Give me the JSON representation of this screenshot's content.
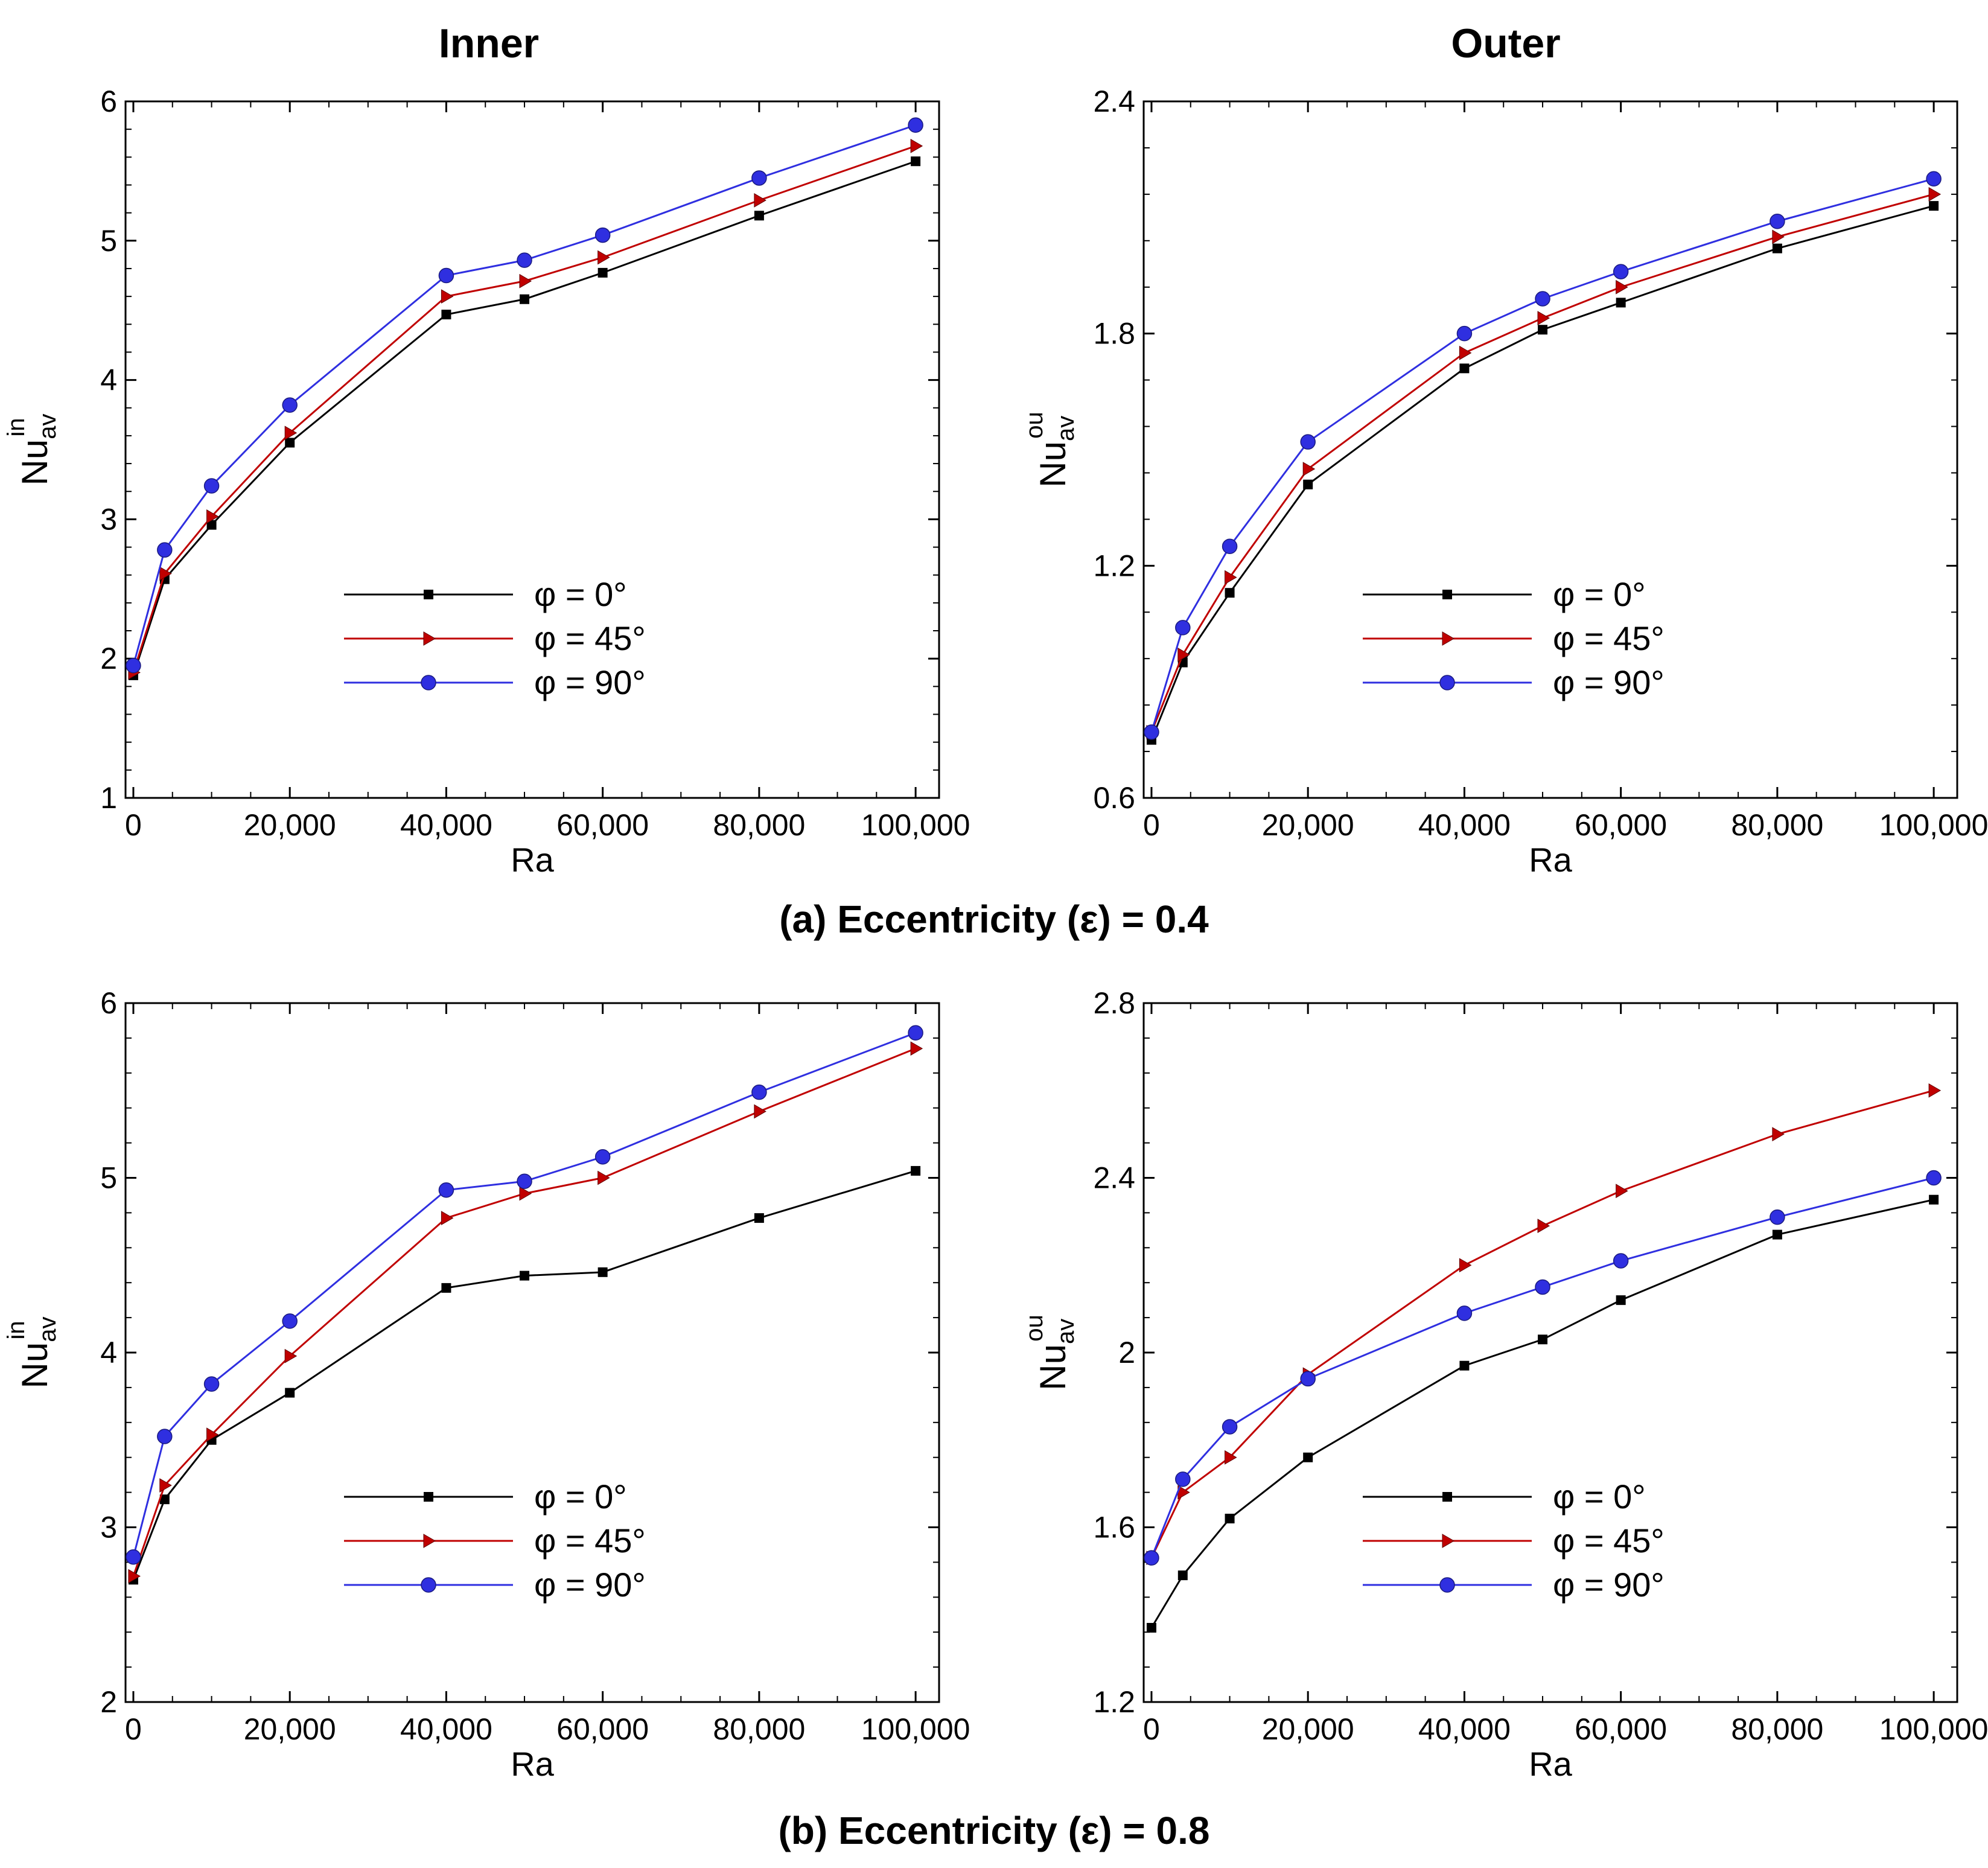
{
  "column_titles": [
    "Inner",
    "Outer"
  ],
  "captions": [
    "(a) Eccentricity (ε) = 0.4",
    "(b) Eccentricity (ε) = 0.8"
  ],
  "legend_labels": [
    "φ = 0°",
    "φ = 45°",
    "φ = 90°"
  ],
  "series_colors": [
    "#000000",
    "#c00000",
    "#2f2fe0"
  ],
  "marker_shapes": [
    "square",
    "triangle-right",
    "circle"
  ],
  "chart_data": [
    {
      "type": "line",
      "title": "Inner",
      "caption": "(a) Eccentricity (ε) = 0.4",
      "xlabel": "Ra",
      "ylabel": {
        "main": "Nu",
        "sub": "av",
        "sup": "in"
      },
      "xlim": [
        -1000,
        103000
      ],
      "ylim": [
        1,
        6
      ],
      "xticks": [
        0,
        20000,
        40000,
        60000,
        80000,
        100000
      ],
      "xtick_labels": [
        "0",
        "20,000",
        "40,000",
        "60,000",
        "80,000",
        "100,000"
      ],
      "yticks": [
        1,
        2,
        3,
        4,
        5,
        6
      ],
      "ytick_labels": [
        "1",
        "2",
        "3",
        "4",
        "5",
        "6"
      ],
      "x": [
        0,
        4000,
        10000,
        20000,
        40000,
        50000,
        60000,
        80000,
        100000
      ],
      "series": [
        {
          "name": "φ = 0°",
          "values": [
            1.88,
            2.57,
            2.96,
            3.55,
            4.47,
            4.58,
            4.77,
            5.18,
            5.57
          ]
        },
        {
          "name": "φ = 45°",
          "values": [
            1.9,
            2.61,
            3.02,
            3.62,
            4.6,
            4.71,
            4.88,
            5.29,
            5.68
          ]
        },
        {
          "name": "φ = 90°",
          "values": [
            1.95,
            2.78,
            3.24,
            3.82,
            4.75,
            4.86,
            5.04,
            5.45,
            5.83
          ]
        }
      ],
      "legend_position": "center"
    },
    {
      "type": "line",
      "title": "Outer",
      "caption": "(a) Eccentricity (ε) = 0.4",
      "xlabel": "Ra",
      "ylabel": {
        "main": "Nu",
        "sub": "av",
        "sup": "ou"
      },
      "xlim": [
        -1000,
        103000
      ],
      "ylim": [
        0.6,
        2.4
      ],
      "xticks": [
        0,
        20000,
        40000,
        60000,
        80000,
        100000
      ],
      "xtick_labels": [
        "0",
        "20,000",
        "40,000",
        "60,000",
        "80,000",
        "100,000"
      ],
      "yticks": [
        0.6,
        1.2,
        1.8,
        2.4
      ],
      "ytick_labels": [
        "0.6",
        "1.2",
        "1.8",
        "2.4"
      ],
      "x": [
        0,
        4000,
        10000,
        20000,
        40000,
        50000,
        60000,
        80000,
        100000
      ],
      "series": [
        {
          "name": "φ = 0°",
          "values": [
            0.75,
            0.95,
            1.13,
            1.41,
            1.71,
            1.81,
            1.88,
            2.02,
            2.13
          ]
        },
        {
          "name": "φ = 45°",
          "values": [
            0.77,
            0.97,
            1.17,
            1.45,
            1.75,
            1.84,
            1.92,
            2.05,
            2.16
          ]
        },
        {
          "name": "φ = 90°",
          "values": [
            0.77,
            1.04,
            1.25,
            1.52,
            1.8,
            1.89,
            1.96,
            2.09,
            2.2
          ]
        }
      ],
      "legend_position": "center"
    },
    {
      "type": "line",
      "title": "Inner",
      "caption": "(b) Eccentricity (ε) = 0.8",
      "xlabel": "Ra",
      "ylabel": {
        "main": "Nu",
        "sub": "av",
        "sup": "in"
      },
      "xlim": [
        -1000,
        103000
      ],
      "ylim": [
        2,
        6
      ],
      "xticks": [
        0,
        20000,
        40000,
        60000,
        80000,
        100000
      ],
      "xtick_labels": [
        "0",
        "20,000",
        "40,000",
        "60,000",
        "80,000",
        "100,000"
      ],
      "yticks": [
        2,
        3,
        4,
        5,
        6
      ],
      "ytick_labels": [
        "2",
        "3",
        "4",
        "5",
        "6"
      ],
      "x": [
        0,
        4000,
        10000,
        20000,
        40000,
        50000,
        60000,
        80000,
        100000
      ],
      "series": [
        {
          "name": "φ = 0°",
          "values": [
            2.7,
            3.16,
            3.5,
            3.77,
            4.37,
            4.44,
            4.46,
            4.77,
            5.04
          ]
        },
        {
          "name": "φ = 45°",
          "values": [
            2.72,
            3.24,
            3.53,
            3.98,
            4.77,
            4.91,
            5.0,
            5.38,
            5.74
          ]
        },
        {
          "name": "φ = 90°",
          "values": [
            2.83,
            3.52,
            3.82,
            4.18,
            4.93,
            4.98,
            5.12,
            5.49,
            5.83
          ]
        }
      ],
      "legend_position": "lower-center"
    },
    {
      "type": "line",
      "title": "Outer",
      "caption": "(b) Eccentricity (ε) = 0.8",
      "xlabel": "Ra",
      "ylabel": {
        "main": "Nu",
        "sub": "av",
        "sup": "ou"
      },
      "xlim": [
        -1000,
        103000
      ],
      "ylim": [
        1.2,
        2.8
      ],
      "xticks": [
        0,
        20000,
        40000,
        60000,
        80000,
        100000
      ],
      "xtick_labels": [
        "0",
        "20,000",
        "40,000",
        "60,000",
        "80,000",
        "100,000"
      ],
      "yticks": [
        1.2,
        1.6,
        2,
        2.4,
        2.8
      ],
      "ytick_labels": [
        "1.2",
        "1.6",
        "2",
        "2.4",
        "2.8"
      ],
      "x": [
        0,
        4000,
        10000,
        20000,
        40000,
        50000,
        60000,
        80000,
        100000
      ],
      "series": [
        {
          "name": "φ = 0°",
          "values": [
            1.37,
            1.49,
            1.62,
            1.76,
            1.97,
            2.03,
            2.12,
            2.27,
            2.35
          ]
        },
        {
          "name": "φ = 45°",
          "values": [
            1.53,
            1.68,
            1.76,
            1.95,
            2.2,
            2.29,
            2.37,
            2.5,
            2.6
          ]
        },
        {
          "name": "φ = 90°",
          "values": [
            1.53,
            1.71,
            1.83,
            1.94,
            2.09,
            2.15,
            2.21,
            2.31,
            2.4
          ]
        }
      ],
      "legend_position": "lower-center"
    }
  ]
}
